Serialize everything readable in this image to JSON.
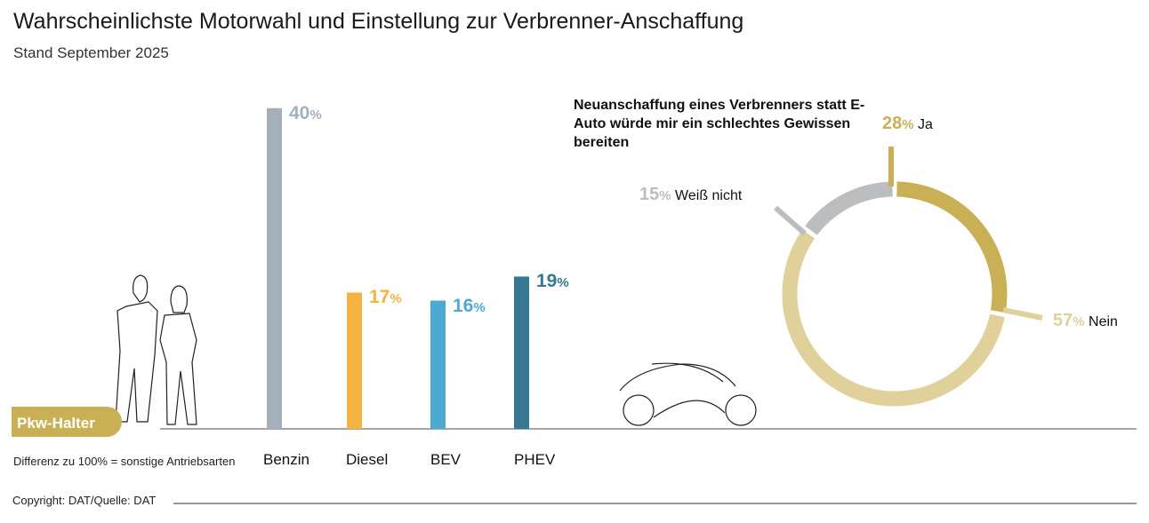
{
  "title": "Wahrscheinlichste Motorwahl und Einstellung zur Verbrenner-Anschaffung",
  "subtitle": "Stand September 2025",
  "note": "Differenz zu 100% = sonstige Antriebsarten",
  "copyright": "Copyright: DAT/Quelle: DAT",
  "group_label": "Pkw-Halter",
  "chart_data": [
    {
      "type": "bar",
      "categories": [
        "Benzin",
        "Diesel",
        "BEV",
        "PHEV"
      ],
      "values": [
        40,
        17,
        16,
        19
      ],
      "labels": [
        "40",
        "17",
        "16",
        "19"
      ],
      "unit": "%",
      "colors": [
        "#a3b0bb",
        "#f6b341",
        "#4ea9d1",
        "#367791"
      ]
    },
    {
      "type": "pie",
      "donut": true,
      "title": "Neuanschaffung eines Verbrenners statt E-Auto würde mir ein schlechtes Gewissen bereiten",
      "slices": [
        {
          "name": "Ja",
          "value": 28,
          "color": "#c9b055"
        },
        {
          "name": "Nein",
          "value": 57,
          "color": "#e0d09a"
        },
        {
          "name": "Weiß nicht",
          "value": 15,
          "color": "#bcbdbf"
        }
      ],
      "unit": "%"
    }
  ]
}
